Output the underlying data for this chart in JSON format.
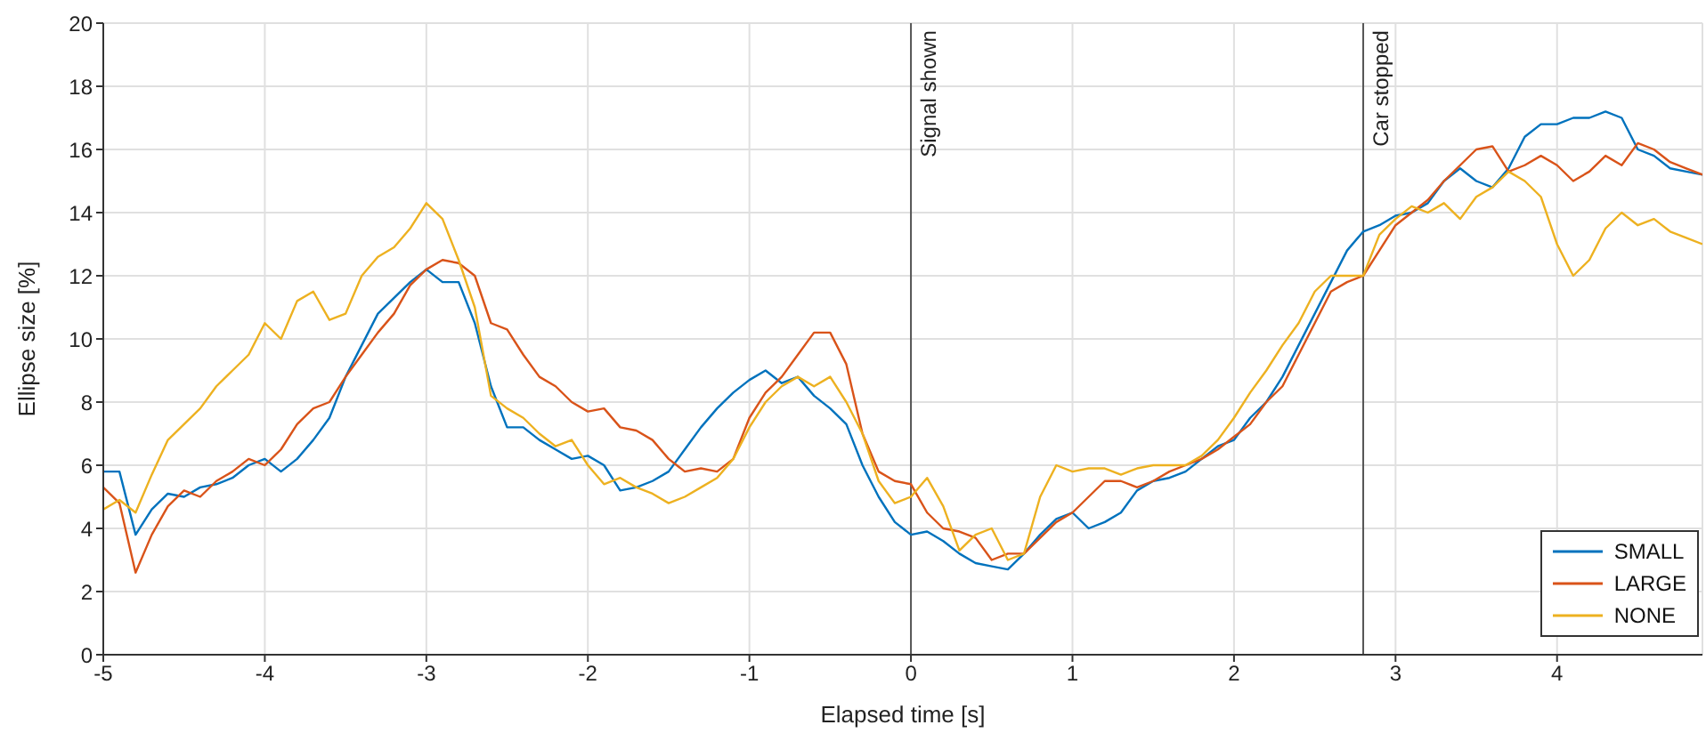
{
  "chart_data": {
    "type": "line",
    "xlabel": "Elapsed time [s]",
    "ylabel": "Ellipse size [%]",
    "x": [
      -5,
      -4.9,
      -4.8,
      -4.7,
      -4.6,
      -4.5,
      -4.4,
      -4.3,
      -4.2,
      -4.1,
      -4,
      -3.9,
      -3.8,
      -3.7,
      -3.6,
      -3.5,
      -3.4,
      -3.3,
      -3.2,
      -3.1,
      -3,
      -2.9,
      -2.8,
      -2.7,
      -2.6,
      -2.5,
      -2.4,
      -2.3,
      -2.2,
      -2.1,
      -2,
      -1.9,
      -1.8,
      -1.7,
      -1.6,
      -1.5,
      -1.4,
      -1.3,
      -1.2,
      -1.1,
      -1,
      -0.9,
      -0.8,
      -0.7,
      -0.6,
      -0.5,
      -0.4,
      -0.3,
      -0.2,
      -0.1,
      0,
      0.1,
      0.2,
      0.3,
      0.4,
      0.5,
      0.6,
      0.7,
      0.8,
      0.9,
      1,
      1.1,
      1.2,
      1.3,
      1.4,
      1.5,
      1.6,
      1.7,
      1.8,
      1.9,
      2,
      2.1,
      2.2,
      2.3,
      2.4,
      2.5,
      2.6,
      2.7,
      2.8,
      2.9,
      3,
      3.1,
      3.2,
      3.3,
      3.4,
      3.5,
      3.6,
      3.7,
      3.8,
      3.9,
      4,
      4.1,
      4.2,
      4.3,
      4.4,
      4.5,
      4.6,
      4.7,
      4.8,
      4.9
    ],
    "series": [
      {
        "name": "SMALL",
        "color": "#0072bd",
        "values": [
          5.8,
          5.8,
          3.8,
          4.6,
          5.1,
          5.0,
          5.3,
          5.4,
          5.6,
          6.0,
          6.2,
          5.8,
          6.2,
          6.8,
          7.5,
          8.8,
          9.8,
          10.8,
          11.3,
          11.8,
          12.2,
          11.8,
          11.8,
          10.5,
          8.5,
          7.2,
          7.2,
          6.8,
          6.5,
          6.2,
          6.3,
          6.0,
          5.2,
          5.3,
          5.5,
          5.8,
          6.5,
          7.2,
          7.8,
          8.3,
          8.7,
          9.0,
          8.6,
          8.8,
          8.2,
          7.8,
          7.3,
          6.0,
          5.0,
          4.2,
          3.8,
          3.9,
          3.6,
          3.2,
          2.9,
          2.8,
          2.7,
          3.2,
          3.8,
          4.3,
          4.5,
          4.0,
          4.2,
          4.5,
          5.2,
          5.5,
          5.6,
          5.8,
          6.2,
          6.6,
          6.8,
          7.5,
          8.0,
          8.8,
          9.8,
          10.8,
          11.8,
          12.8,
          13.4,
          13.6,
          13.9,
          14.0,
          14.3,
          15.0,
          15.4,
          15.0,
          14.8,
          15.4,
          16.4,
          16.8,
          16.8,
          17.0,
          17.0,
          17.2,
          17.0,
          16.0,
          15.8,
          15.4,
          15.3,
          15.2
        ]
      },
      {
        "name": "LARGE",
        "color": "#d95319",
        "values": [
          5.3,
          4.8,
          2.6,
          3.8,
          4.7,
          5.2,
          5.0,
          5.5,
          5.8,
          6.2,
          6.0,
          6.5,
          7.3,
          7.8,
          8.0,
          8.8,
          9.5,
          10.2,
          10.8,
          11.7,
          12.2,
          12.5,
          12.4,
          12.0,
          10.5,
          10.3,
          9.5,
          8.8,
          8.5,
          8.0,
          7.7,
          7.8,
          7.2,
          7.1,
          6.8,
          6.2,
          5.8,
          5.9,
          5.8,
          6.2,
          7.5,
          8.3,
          8.8,
          9.5,
          10.2,
          10.2,
          9.2,
          7.0,
          5.8,
          5.5,
          5.4,
          4.5,
          4.0,
          3.9,
          3.7,
          3.0,
          3.2,
          3.2,
          3.7,
          4.2,
          4.5,
          5.0,
          5.5,
          5.5,
          5.3,
          5.5,
          5.8,
          6.0,
          6.2,
          6.5,
          6.9,
          7.3,
          8.0,
          8.5,
          9.5,
          10.5,
          11.5,
          11.8,
          12.0,
          12.8,
          13.6,
          14.0,
          14.4,
          15.0,
          15.5,
          16.0,
          16.1,
          15.3,
          15.5,
          15.8,
          15.5,
          15.0,
          15.3,
          15.8,
          15.5,
          16.2,
          16.0,
          15.6,
          15.4,
          15.2
        ]
      },
      {
        "name": "NONE",
        "color": "#edb120",
        "values": [
          4.6,
          4.9,
          4.5,
          5.7,
          6.8,
          7.3,
          7.8,
          8.5,
          9.0,
          9.5,
          10.5,
          10.0,
          11.2,
          11.5,
          10.6,
          10.8,
          12.0,
          12.6,
          12.9,
          13.5,
          14.3,
          13.8,
          12.5,
          11.0,
          8.2,
          7.8,
          7.5,
          7.0,
          6.6,
          6.8,
          6.0,
          5.4,
          5.6,
          5.3,
          5.1,
          4.8,
          5.0,
          5.3,
          5.6,
          6.2,
          7.2,
          8.0,
          8.5,
          8.8,
          8.5,
          8.8,
          8.0,
          7.0,
          5.5,
          4.8,
          5.0,
          5.6,
          4.7,
          3.3,
          3.8,
          4.0,
          3.0,
          3.2,
          5.0,
          6.0,
          5.8,
          5.9,
          5.9,
          5.7,
          5.9,
          6.0,
          6.0,
          6.0,
          6.3,
          6.8,
          7.5,
          8.3,
          9.0,
          9.8,
          10.5,
          11.5,
          12.0,
          12.0,
          12.0,
          13.3,
          13.8,
          14.2,
          14.0,
          14.3,
          13.8,
          14.5,
          14.8,
          15.3,
          15.0,
          14.5,
          13.0,
          12.0,
          12.5,
          13.5,
          14.0,
          13.6,
          13.8,
          13.4,
          13.2,
          13.0
        ]
      }
    ],
    "xlim": [
      -5,
      4.9
    ],
    "xticks": [
      -5,
      -4,
      -3,
      -2,
      -1,
      0,
      1,
      2,
      3,
      4
    ],
    "ylim": [
      0,
      20
    ],
    "yticks": [
      0,
      2,
      4,
      6,
      8,
      10,
      12,
      14,
      16,
      18,
      20
    ],
    "ref_lines": [
      {
        "axis": "x",
        "value": 0,
        "label": "Signal shown",
        "color": "#555555"
      },
      {
        "axis": "x",
        "value": 2.8,
        "label": "Car stopped",
        "color": "#555555"
      }
    ],
    "grid": true,
    "legend": "bottom right",
    "marker": "none",
    "line_style": "solid"
  }
}
